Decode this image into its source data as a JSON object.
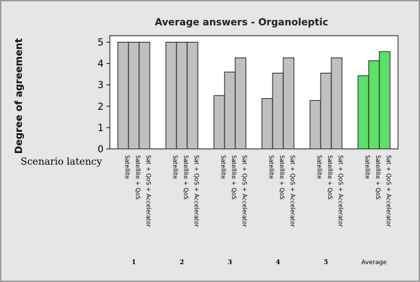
{
  "chart_data": {
    "type": "bar",
    "title": "Average answers - Organoleptic",
    "ylabel": "Degree of agreement",
    "x_side_label": "Scenario latency",
    "ylim": [
      0,
      5
    ],
    "yticks": [
      "0",
      "1",
      "2",
      "3",
      "4",
      "5"
    ],
    "grid": false,
    "bar_labels": [
      "Satellite",
      "Satellite + QoS",
      "Sat + QoS + Accelerator"
    ],
    "groups": [
      {
        "label": "1",
        "values": [
          5,
          5,
          5
        ],
        "highlight": false
      },
      {
        "label": "2",
        "values": [
          5,
          5,
          5
        ],
        "highlight": false
      },
      {
        "label": "3",
        "values": [
          2.5,
          3.6,
          4.27
        ],
        "highlight": false
      },
      {
        "label": "4",
        "values": [
          2.36,
          3.55,
          4.27
        ],
        "highlight": false
      },
      {
        "label": "5",
        "values": [
          2.27,
          3.55,
          4.27
        ],
        "highlight": false
      },
      {
        "label": "Average",
        "values": [
          3.43,
          4.13,
          4.56
        ],
        "highlight": true
      }
    ],
    "colors": {
      "bar": "#c0c0c0",
      "highlight": "#5ee06a",
      "outline": "#1a1a1a"
    }
  }
}
